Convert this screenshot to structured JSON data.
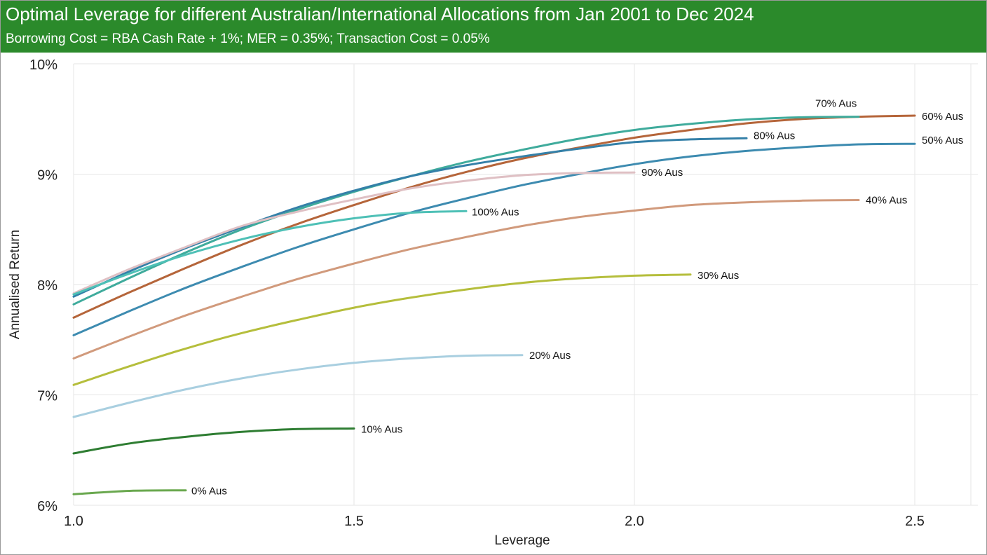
{
  "header": {
    "title": "Optimal Leverage for different Australian/International Allocations from Jan 2001 to Dec 2024",
    "subtitle": "Borrowing Cost = RBA Cash Rate + 1%; MER = 0.35%; Transaction Cost = 0.05%"
  },
  "colors": {
    "header_bg": "#2b8a2b",
    "grid": "#e6e6e6"
  },
  "chart_data": {
    "type": "line",
    "title": "Optimal Leverage for different Australian/International Allocations from Jan 2001 to Dec 2024",
    "subtitle": "Borrowing Cost = RBA Cash Rate + 1%; MER = 0.35%; Transaction Cost = 0.05%",
    "xlabel": "Leverage",
    "ylabel": "Annualised Return",
    "xlim": [
      1.0,
      2.6
    ],
    "ylim": [
      6,
      10
    ],
    "xticks": [
      1.0,
      1.5,
      2.0,
      2.5
    ],
    "xtick_labels": [
      "1.0",
      "1.5",
      "2.0",
      "2.5"
    ],
    "yticks": [
      6,
      7,
      8,
      9,
      10
    ],
    "ytick_labels": [
      "6%",
      "7%",
      "8%",
      "9%",
      "10%"
    ],
    "grid": true,
    "legend": "none (direct line labels)",
    "series": [
      {
        "name": "0% Aus",
        "color": "#6aa84f",
        "x": [
          1.0,
          1.1,
          1.2
        ],
        "y": [
          6.1,
          6.13,
          6.135
        ]
      },
      {
        "name": "10% Aus",
        "color": "#2e7d32",
        "x": [
          1.0,
          1.1,
          1.2,
          1.3,
          1.4,
          1.5
        ],
        "y": [
          6.47,
          6.56,
          6.62,
          6.665,
          6.69,
          6.695
        ]
      },
      {
        "name": "20% Aus",
        "color": "#a9cfe0",
        "x": [
          1.0,
          1.1,
          1.2,
          1.3,
          1.4,
          1.5,
          1.6,
          1.7,
          1.8
        ],
        "y": [
          6.8,
          6.93,
          7.05,
          7.15,
          7.23,
          7.29,
          7.33,
          7.355,
          7.36
        ]
      },
      {
        "name": "30% Aus",
        "color": "#b5be3c",
        "x": [
          1.0,
          1.1,
          1.2,
          1.3,
          1.4,
          1.5,
          1.6,
          1.7,
          1.8,
          1.9,
          2.0,
          2.1
        ],
        "y": [
          7.09,
          7.26,
          7.42,
          7.56,
          7.68,
          7.79,
          7.88,
          7.955,
          8.015,
          8.055,
          8.08,
          8.09
        ]
      },
      {
        "name": "40% Aus",
        "color": "#d19a7c",
        "x": [
          1.0,
          1.1,
          1.2,
          1.3,
          1.4,
          1.5,
          1.6,
          1.7,
          1.8,
          1.9,
          2.0,
          2.1,
          2.2,
          2.3,
          2.4
        ],
        "y": [
          7.33,
          7.53,
          7.72,
          7.89,
          8.05,
          8.19,
          8.32,
          8.43,
          8.53,
          8.61,
          8.67,
          8.72,
          8.745,
          8.76,
          8.765
        ]
      },
      {
        "name": "50% Aus",
        "color": "#3d8bb0",
        "x": [
          1.0,
          1.1,
          1.2,
          1.3,
          1.4,
          1.5,
          1.6,
          1.7,
          1.8,
          1.9,
          2.0,
          2.1,
          2.2,
          2.3,
          2.4,
          2.5
        ],
        "y": [
          7.54,
          7.76,
          7.97,
          8.16,
          8.34,
          8.5,
          8.65,
          8.78,
          8.9,
          9.0,
          9.09,
          9.16,
          9.21,
          9.245,
          9.27,
          9.275
        ]
      },
      {
        "name": "60% Aus",
        "color": "#b5653a",
        "x": [
          1.0,
          1.1,
          1.2,
          1.3,
          1.4,
          1.5,
          1.6,
          1.7,
          1.8,
          1.9,
          2.0,
          2.1,
          2.2,
          2.3,
          2.4,
          2.5
        ],
        "y": [
          7.7,
          7.93,
          8.15,
          8.36,
          8.55,
          8.72,
          8.88,
          9.02,
          9.14,
          9.24,
          9.33,
          9.4,
          9.46,
          9.5,
          9.52,
          9.53
        ]
      },
      {
        "name": "70% Aus",
        "color": "#3fab9c",
        "x": [
          1.0,
          1.1,
          1.2,
          1.3,
          1.4,
          1.5,
          1.6,
          1.7,
          1.8,
          1.9,
          2.0,
          2.1,
          2.2,
          2.3,
          2.4
        ],
        "y": [
          7.82,
          8.06,
          8.29,
          8.5,
          8.68,
          8.84,
          8.98,
          9.11,
          9.22,
          9.32,
          9.4,
          9.455,
          9.495,
          9.515,
          9.52
        ]
      },
      {
        "name": "80% Aus",
        "color": "#3480a8",
        "x": [
          1.0,
          1.1,
          1.2,
          1.3,
          1.4,
          1.5,
          1.6,
          1.7,
          1.8,
          1.9,
          2.0,
          2.1,
          2.2
        ],
        "y": [
          7.89,
          8.12,
          8.33,
          8.52,
          8.7,
          8.85,
          8.98,
          9.08,
          9.16,
          9.23,
          9.29,
          9.315,
          9.325
        ]
      },
      {
        "name": "90% Aus",
        "color": "#dfc0c4",
        "x": [
          1.0,
          1.1,
          1.2,
          1.3,
          1.4,
          1.5,
          1.6,
          1.7,
          1.8,
          1.9,
          2.0
        ],
        "y": [
          7.92,
          8.14,
          8.34,
          8.53,
          8.66,
          8.77,
          8.87,
          8.94,
          8.99,
          9.01,
          9.015
        ]
      },
      {
        "name": "100% Aus",
        "color": "#4ec0b6",
        "x": [
          1.0,
          1.1,
          1.2,
          1.3,
          1.4,
          1.5,
          1.6,
          1.7
        ],
        "y": [
          7.91,
          8.1,
          8.27,
          8.41,
          8.52,
          8.6,
          8.65,
          8.665
        ]
      }
    ]
  }
}
